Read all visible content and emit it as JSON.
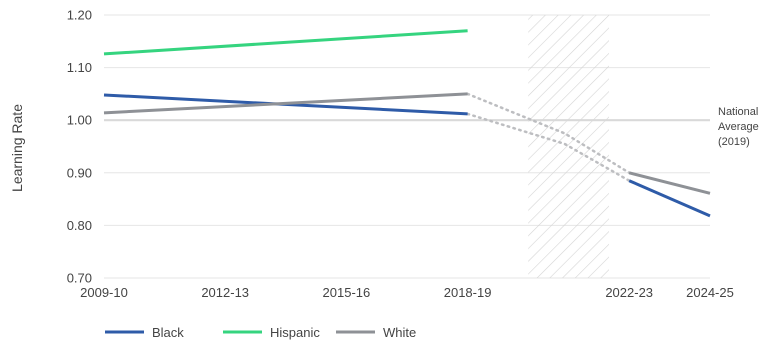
{
  "chart_data": {
    "type": "line",
    "title": "",
    "xlabel": "",
    "ylabel": "Learning Rate",
    "ylim": [
      0.7,
      1.2
    ],
    "yticks": [
      "0.70",
      "0.80",
      "0.90",
      "1.00",
      "1.10",
      "1.20"
    ],
    "xticks": [
      "2009-10",
      "2012-13",
      "2015-16",
      "2018-19",
      "2022-23",
      "2024-25"
    ],
    "xtick_values": [
      2009,
      2012,
      2015,
      2018,
      2022,
      2024
    ],
    "xlim": [
      2009,
      2024
    ],
    "gridlines": "horizontal",
    "shaded_region": {
      "from": 2019.5,
      "to": 2021.5,
      "pattern": "hatched"
    },
    "reference_line": {
      "y": 1.0,
      "label_lines": [
        "National",
        "Average",
        "(2019)"
      ],
      "color": "#d9d9d9"
    },
    "series": [
      {
        "name": "Black",
        "color": "#2e5ba8",
        "solid": [
          [
            2009,
            1.048
          ],
          [
            2018,
            1.012
          ]
        ],
        "dotted": [
          [
            2018,
            1.012
          ],
          [
            2020.4,
            0.955
          ],
          [
            2022,
            0.885
          ]
        ],
        "solid_late": [
          [
            2022,
            0.885
          ],
          [
            2024,
            0.818
          ]
        ]
      },
      {
        "name": "Hispanic",
        "color": "#35d47f",
        "solid": [
          [
            2009,
            1.126
          ],
          [
            2018,
            1.17
          ]
        ],
        "dotted": [],
        "solid_late": []
      },
      {
        "name": "White",
        "color": "#8e9196",
        "solid": [
          [
            2009,
            1.014
          ],
          [
            2018,
            1.05
          ]
        ],
        "dotted": [
          [
            2018,
            1.05
          ],
          [
            2020.4,
            0.975
          ],
          [
            2022,
            0.9
          ]
        ],
        "solid_late": [
          [
            2022,
            0.9
          ],
          [
            2024,
            0.861
          ]
        ]
      }
    ],
    "legend": {
      "placement": "bottom-left",
      "items": [
        "Black",
        "Hispanic",
        "White"
      ]
    }
  }
}
